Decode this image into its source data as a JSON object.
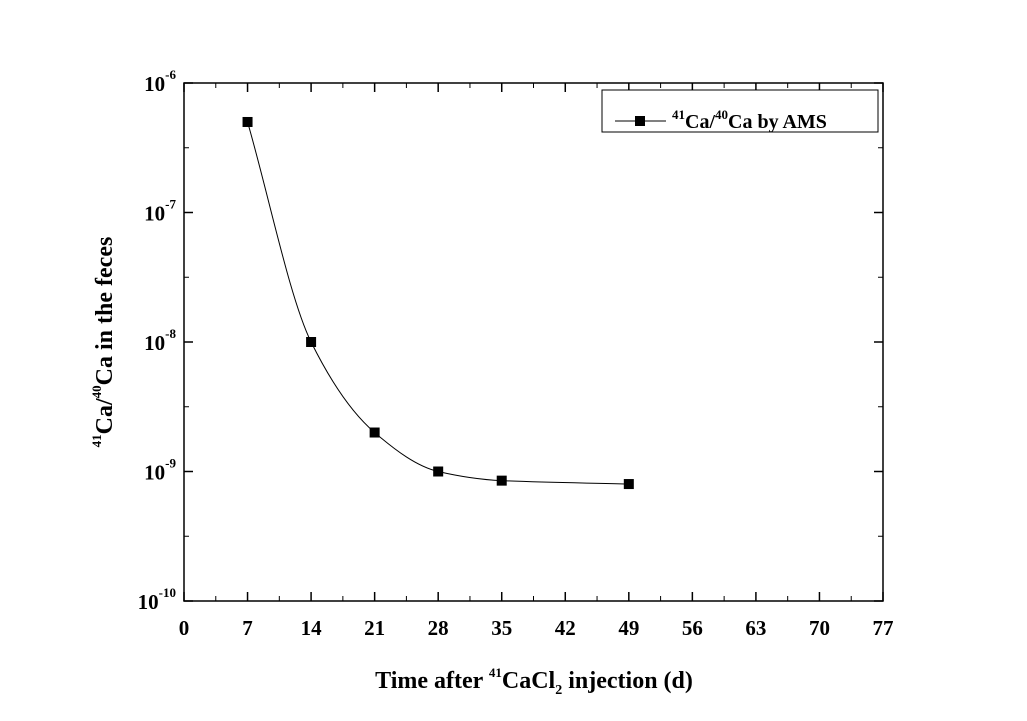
{
  "chart_data": {
    "type": "scatter",
    "xlabel_parts": {
      "prefix": "Time after ",
      "sup": "41",
      "mid": "CaCl",
      "sub": "2",
      "suffix": " injection (d)"
    },
    "ylabel_parts": {
      "sup1": "41",
      "mid": "Ca/",
      "sup2": "40",
      "suffix": "Ca in the feces"
    },
    "xlim": [
      0,
      77
    ],
    "ylim": [
      1e-10,
      1e-06
    ],
    "yscale": "log",
    "x_ticks": [
      0,
      7,
      14,
      21,
      28,
      35,
      42,
      49,
      56,
      63,
      70,
      77
    ],
    "y_ticks": [
      {
        "value": 1e-06,
        "base": "10",
        "exp": "-6"
      },
      {
        "value": 1e-07,
        "base": "10",
        "exp": "-7"
      },
      {
        "value": 1e-08,
        "base": "10",
        "exp": "-8"
      },
      {
        "value": 1e-09,
        "base": "10",
        "exp": "-9"
      },
      {
        "value": 1e-10,
        "base": "10",
        "exp": "-10"
      }
    ],
    "grid": false,
    "legend_position": "top-right",
    "series": [
      {
        "legend_parts": {
          "sup1": "41",
          "mid": "Ca/",
          "sup2": "40",
          "suffix": "Ca by AMS"
        },
        "marker": "square",
        "color": "#000000",
        "x": [
          7,
          14,
          21,
          28,
          35,
          49
        ],
        "y": [
          5e-07,
          1e-08,
          2e-09,
          1e-09,
          8.5e-10,
          8e-10
        ]
      }
    ]
  }
}
